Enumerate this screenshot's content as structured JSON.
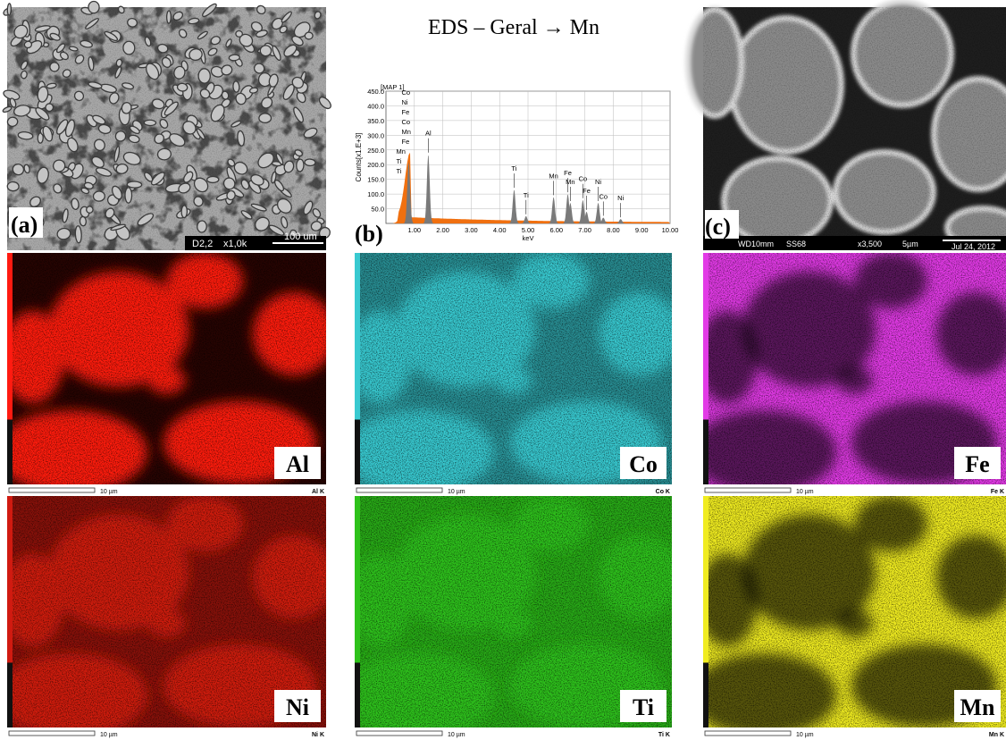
{
  "title": "EDS – Geral → Mn",
  "panel_a": {
    "label": "(a)",
    "footer": [
      "D2,2",
      "x1,0k",
      "100 um"
    ]
  },
  "panel_b": {
    "label": "(b)"
  },
  "panel_c": {
    "label": "(c)",
    "footer": [
      "WD10mm",
      "SS68",
      "x3,500",
      "5µm",
      "Jul 24, 2012"
    ]
  },
  "spectrum": {
    "tag": "[MAP 1]",
    "ylabel": "Counts[x1.E+3]",
    "xlabel": "keV",
    "xlim": [
      0,
      10
    ],
    "ylim": [
      0,
      450
    ],
    "xticks": [
      {
        "value": 1,
        "label": "1.00"
      },
      {
        "value": 2,
        "label": "2.00"
      },
      {
        "value": 3,
        "label": "3.00"
      },
      {
        "value": 4,
        "label": "4.00"
      },
      {
        "value": 5,
        "label": "5.00"
      },
      {
        "value": 6,
        "label": "6.00"
      },
      {
        "value": 7,
        "label": "7.00"
      },
      {
        "value": 8,
        "label": "8.00"
      },
      {
        "value": 9,
        "label": "9.00"
      },
      {
        "value": 10,
        "label": "10.00"
      }
    ],
    "yticks": [
      {
        "value": 50,
        "label": "50.0"
      },
      {
        "value": 100,
        "label": "100.0"
      },
      {
        "value": 150,
        "label": "150.0"
      },
      {
        "value": 200,
        "label": "200.0"
      },
      {
        "value": 250,
        "label": "250.0"
      },
      {
        "value": 300,
        "label": "300.0"
      },
      {
        "value": 350,
        "label": "350.0"
      },
      {
        "value": 400,
        "label": "400.0"
      },
      {
        "value": 450,
        "label": "450.0"
      }
    ],
    "low_lines": [
      "Co",
      "Ni",
      "Fe",
      "Co",
      "Mn",
      "Fe",
      "Mn",
      "Ti",
      "Ti"
    ],
    "peaks": [
      {
        "label": "Al",
        "energy": 1.49,
        "counts": 235
      },
      {
        "label": "Ti",
        "energy": 4.51,
        "counts": 115
      },
      {
        "label": "Ti",
        "energy": 4.93,
        "counts": 25
      },
      {
        "label": "Mn",
        "energy": 5.9,
        "counts": 90
      },
      {
        "label": "Fe",
        "energy": 6.4,
        "counts": 100
      },
      {
        "label": "Mn",
        "energy": 6.49,
        "counts": 70
      },
      {
        "label": "Co",
        "energy": 6.93,
        "counts": 80
      },
      {
        "label": "Fe",
        "energy": 7.06,
        "counts": 40
      },
      {
        "label": "Ni",
        "energy": 7.47,
        "counts": 70
      },
      {
        "label": "Co",
        "energy": 7.65,
        "counts": 20
      },
      {
        "label": "Ni",
        "energy": 8.26,
        "counts": 15
      }
    ]
  },
  "maps": [
    {
      "element": "Al",
      "scale": "10 µm",
      "line": "Al K",
      "color": "#ff1a10"
    },
    {
      "element": "Co",
      "scale": "10 µm",
      "line": "Co K",
      "color": "#39c9d0"
    },
    {
      "element": "Fe",
      "scale": "10 µm",
      "line": "Fe K",
      "color": "#e23ae6"
    },
    {
      "element": "Ni",
      "scale": "10 µm",
      "line": "Ni K",
      "color": "#d01a10"
    },
    {
      "element": "Ti",
      "scale": "10 µm",
      "line": "Ti K",
      "color": "#2ec21a"
    },
    {
      "element": "Mn",
      "scale": "10 µm",
      "line": "Mn K",
      "color": "#f0ec20"
    }
  ]
}
